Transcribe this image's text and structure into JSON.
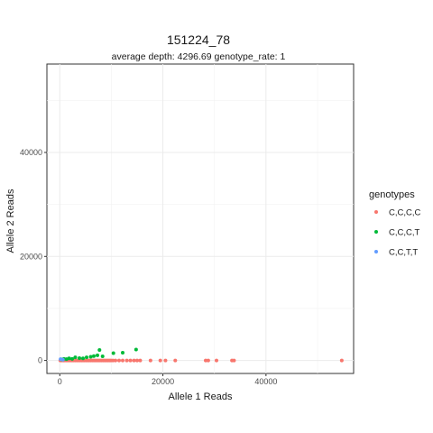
{
  "chart_data": {
    "type": "scatter",
    "title": "151224_78",
    "subtitle": "average depth:  4296.69  genotype_rate:  1",
    "xlabel": "Allele 1 Reads",
    "ylabel": "Allele 2 Reads",
    "xlim": [
      -2500,
      57000
    ],
    "ylim": [
      -2500,
      57000
    ],
    "x_ticks": [
      0,
      20000,
      40000
    ],
    "y_ticks": [
      0,
      20000,
      40000
    ],
    "x_tick_labels": [
      "0",
      "20000",
      "40000"
    ],
    "y_tick_labels": [
      "0",
      "20000",
      "40000"
    ],
    "grid": true,
    "legend_position": "right",
    "legend_title": "genotypes",
    "series": [
      {
        "name": "C,C,C,C",
        "color": "#F8766D",
        "points": [
          [
            100,
            0
          ],
          [
            400,
            0
          ],
          [
            700,
            0
          ],
          [
            900,
            0
          ],
          [
            1200,
            0
          ],
          [
            1500,
            0
          ],
          [
            1800,
            0
          ],
          [
            2100,
            0
          ],
          [
            2400,
            0
          ],
          [
            2700,
            0
          ],
          [
            3000,
            0
          ],
          [
            3300,
            0
          ],
          [
            3600,
            0
          ],
          [
            3900,
            0
          ],
          [
            4200,
            0
          ],
          [
            4500,
            0
          ],
          [
            4800,
            0
          ],
          [
            5100,
            0
          ],
          [
            5400,
            0
          ],
          [
            5700,
            0
          ],
          [
            6000,
            0
          ],
          [
            6300,
            0
          ],
          [
            6600,
            0
          ],
          [
            6900,
            0
          ],
          [
            7200,
            0
          ],
          [
            7500,
            0
          ],
          [
            7800,
            0
          ],
          [
            8100,
            0
          ],
          [
            8400,
            0
          ],
          [
            8700,
            0
          ],
          [
            9000,
            0
          ],
          [
            9300,
            0
          ],
          [
            9600,
            0
          ],
          [
            9900,
            0
          ],
          [
            10300,
            0
          ],
          [
            10800,
            0
          ],
          [
            11500,
            0
          ],
          [
            12200,
            0
          ],
          [
            13000,
            0
          ],
          [
            13700,
            0
          ],
          [
            14400,
            0
          ],
          [
            15000,
            0
          ],
          [
            15600,
            0
          ],
          [
            17600,
            0
          ],
          [
            19500,
            0
          ],
          [
            20500,
            0
          ],
          [
            22400,
            0
          ],
          [
            28300,
            0
          ],
          [
            28800,
            0
          ],
          [
            30400,
            0
          ],
          [
            33400,
            0
          ],
          [
            33800,
            0
          ],
          [
            54700,
            0
          ]
        ]
      },
      {
        "name": "C,C,C,T",
        "color": "#00BA38",
        "points": [
          [
            300,
            200
          ],
          [
            800,
            300
          ],
          [
            1300,
            250
          ],
          [
            1800,
            400
          ],
          [
            2400,
            300
          ],
          [
            3000,
            600
          ],
          [
            3800,
            450
          ],
          [
            4500,
            400
          ],
          [
            5200,
            600
          ],
          [
            6000,
            700
          ],
          [
            6600,
            850
          ],
          [
            7300,
            1000
          ],
          [
            7700,
            2000
          ],
          [
            8300,
            800
          ],
          [
            10400,
            1400
          ],
          [
            12200,
            1500
          ],
          [
            14800,
            2100
          ]
        ]
      },
      {
        "name": "C,C,T,T",
        "color": "#619CFF",
        "points": [
          [
            150,
            250
          ],
          [
            600,
            150
          ]
        ]
      }
    ]
  }
}
